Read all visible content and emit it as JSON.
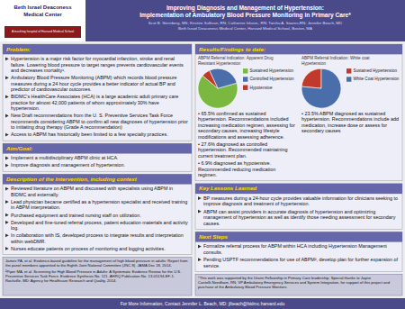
{
  "title": "Improving Diagnosis and Management of Hypertension:\nImplementation of Ambulatory Blood Pressure Monitoring in Primary Care*",
  "subtitle": "Scot B. Sternberg, MS; Kristine Sullivan, RN; Catherine Ivkovic, RN; Tarsha A. Soares,RN; Jennifer Beach, MD\nBeth Israel Deaconess Medical Center, Harvard Medical School, Boston, MA",
  "annotations": [
    {
      "items": [
        "Beth Israel Deaconess\nMedical Center",
        "A teaching hospital of Harvard Medical School"
      ]
    },
    {
      "title": "Problem:",
      "items": [
        "Hypertension is a major risk factor for myocardial infarction, stroke and renal failure.  Lowering blood pressure to target ranges  prevents cardiovascular events and decreases mortality¹.",
        "Ambulatory Blood Pressure Monitoring (ABPM) which records blood pressure measures during a 24 hour cycle provides a better indicator of actual BP and predictor of cardiovascular outcomes.",
        "BIDMC's HealthCare Associates (HCA) is a large academic adult primary care practice for almost 42,000 patients  of whom approximately 30% have hypertension.",
        "New Draft recommendations from the U. S. Preventive Services Task Force recommends considering ABPM to confirm all new diagnoses of hypertension prior to initiating drug therapy (Grade A recommendation)",
        "Access to ABPM has historically been limited to a few specialty practices."
      ]
    },
    {
      "title": "Aim/Goal:",
      "items": [
        "Implement a multidisciplinary ABPM clinic  at HCA.",
        "Improve diagnosis and management of hypertension."
      ]
    },
    {
      "title": "Description of the Intervention, including context",
      "items": [
        "Reviewed literature on ABPM and discussed with specialists using ABPM in BIDMC and externally.",
        "Lead physician became certified as a hypertension specialist and received training in ABPM interpretation.",
        "Purchased equipment and trained nursing staff on utilization.",
        "Developed and fine-tuned referral process, patient education materials and activity log.",
        "In collaboration with IS, developed process to integrate results and interpretation within webDMR.",
        "Nurses educate patients on process of monitoring and logging activities."
      ]
    },
    {
      "items": [
        "James PA, et al. Evidence-based guideline for the management of high blood pressure in adults: Report from the panel members appointed to the Eighth Joint National Committee (JNC 8). JAMA Dec 18, 2014.",
        "²Piper MA, et al. Screening for High Blood Pressure in Adults: A Systematic Evidence Review for the U.S. Preventive Services Task Force. Evidence Synthesis No. 121. AHRQ Publication No. 13-05194-EF-1. Rockville, MD: Agency for Healthcare Research and Quality, 2014."
      ]
    },
    {
      "title": "Results/Findings to date:",
      "items": []
    },
    {
      "title": "Key Lessons Learned",
      "items": [
        "BP measures during a 24-hour cycle provides valuable information for clinicians seeking to improve diagnosis and treatment of hypertension.",
        "ABPM can assist providers in accurate diagnosis of hypertension and optimizing management of hypertension as well as identify those needing assessment for secondary causes."
      ]
    },
    {
      "title": "Next Steps",
      "items": [
        "Formalize referral process for ABPM within HCA including Hypertension Management consults.",
        "Pending USPTF recommendations for use of ABPM², develop plan for further expansion of service."
      ]
    },
    {
      "items": [
        "*This work was supported by the Urann Fellowship in Primary Care leadership. Special thanks to Jayne Cantelli-Needham, RN, VP Ambulatory Emergency Services and System Integration, for support of this project and purchase of the Ambulatory Blood Pressure Monitors."
      ]
    },
    {
      "items": [
        "For More Information, Contact Jennifer L. Beach, MD: jlbeach@bidmc.harvard.edu"
      ]
    }
  ],
  "chart_data": [
    {
      "type": "pie",
      "title": "ABPM Referral Indication:  Apparent Drug\nResistant Hypertension",
      "categories": [
        "Sustained Hypertension",
        "Controlled Hypertension",
        "Hypotensive"
      ],
      "values": [
        65.5,
        27.6,
        6.9
      ],
      "colors": [
        "#7ab840",
        "#4a6eaa",
        "#c0392b"
      ],
      "annotations": [
        "•  65.5% confirmed as sustained hypertension. Recommendations included increasing medication regimen, assessing for secondary causes,  increasing lifestyle modifications and assessing adherence.",
        "•  27.6% diagnosed as controlled hypertension. Recommended maintaining current treatment plan.",
        "•  6.9% diagnosed as hypotensive. Recommended reducing medication regimen."
      ]
    },
    {
      "type": "pie",
      "title": "ABPM Referral Indication:  White coat\nHypertension",
      "categories": [
        "Sustained Hypertension",
        "White Coat Hypertension"
      ],
      "values": [
        23.5,
        76.5
      ],
      "colors": [
        "#c0392b",
        "#4a6eaa"
      ],
      "annotations": [
        "•  23.5% ABPM diagnosed as sustained hypertension. Recommendations include add medication, increase dose or assess for secondary causes"
      ]
    }
  ]
}
